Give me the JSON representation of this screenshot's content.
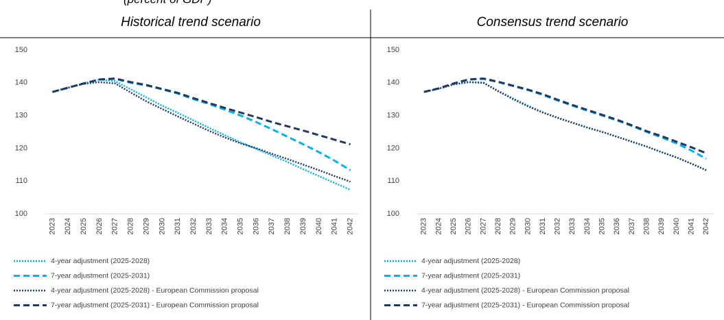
{
  "header": {
    "caption": "(percent of GDP)"
  },
  "chart_data": [
    {
      "type": "line",
      "title": "Historical trend scenario",
      "x": [
        2023,
        2024,
        2025,
        2026,
        2027,
        2028,
        2029,
        2030,
        2031,
        2032,
        2033,
        2034,
        2035,
        2036,
        2037,
        2038,
        2039,
        2040,
        2041,
        2042
      ],
      "ylim": [
        100,
        150
      ],
      "yticks": [
        100,
        110,
        120,
        130,
        140,
        150
      ],
      "legend": "bottom",
      "series": [
        {
          "name": "4-year adjustment (2025-2028)",
          "color": "#00b0f0",
          "dash": "dotted",
          "values": [
            137.2,
            138.5,
            139.8,
            141,
            140.5,
            138,
            135.5,
            133,
            130.8,
            128.5,
            126.2,
            124,
            121.8,
            119.8,
            117.8,
            115.8,
            113.6,
            111.5,
            109.4,
            107.3
          ]
        },
        {
          "name": "7-year adjustment (2025-2031)",
          "color": "#00b0f0",
          "dash": "dashed",
          "values": [
            137.2,
            138.5,
            139.8,
            141,
            141.2,
            140,
            139.2,
            138,
            136.7,
            135,
            133.5,
            131.8,
            130,
            128,
            125.8,
            123.5,
            121.2,
            118.8,
            116.2,
            113.3
          ]
        },
        {
          "name": "4-year adjustment (2025-2028) - European Commission proposal",
          "color": "#1f3864",
          "dash": "dotted",
          "values": [
            137.2,
            138.5,
            139.7,
            140.2,
            139.8,
            137,
            134.3,
            132,
            129.7,
            127.5,
            125.3,
            123.3,
            121.5,
            120,
            118.3,
            116.7,
            115,
            113.3,
            111.5,
            109.8
          ]
        },
        {
          "name": "7-year adjustment (2025-2031) - European Commission proposal",
          "color": "#1f3864",
          "dash": "dashed",
          "values": [
            137.2,
            138.5,
            139.8,
            141,
            141.3,
            140.2,
            139.3,
            138.1,
            136.9,
            135.3,
            133.8,
            132.3,
            130.9,
            129.5,
            128,
            126.7,
            125.4,
            124,
            122.6,
            121.2
          ]
        }
      ]
    },
    {
      "type": "line",
      "title": "Consensus trend scenario",
      "x": [
        2023,
        2024,
        2025,
        2026,
        2027,
        2028,
        2029,
        2030,
        2031,
        2032,
        2033,
        2034,
        2035,
        2036,
        2037,
        2038,
        2039,
        2040,
        2041,
        2042
      ],
      "ylim": [
        100,
        150
      ],
      "yticks": [
        100,
        110,
        120,
        130,
        140,
        150
      ],
      "legend": "bottom",
      "series": [
        {
          "name": "4-year adjustment (2025-2028)",
          "color": "#00b0f0",
          "dash": "dotted",
          "values": [
            137.2,
            138.2,
            139.5,
            140.2,
            140,
            137.5,
            135.2,
            133,
            131,
            129.3,
            127.8,
            126.3,
            125,
            123.5,
            122,
            120.5,
            118.8,
            117.2,
            115.3,
            113.3
          ]
        },
        {
          "name": "7-year adjustment (2025-2031)",
          "color": "#00b0f0",
          "dash": "dashed",
          "values": [
            137.2,
            138.3,
            139.8,
            141,
            141.2,
            140.2,
            139,
            137.8,
            136.3,
            134.6,
            133,
            131.5,
            130,
            128.5,
            126.8,
            125,
            123.3,
            121.5,
            119.3,
            116.8
          ]
        },
        {
          "name": "4-year adjustment (2025-2028) - European Commission proposal",
          "color": "#1f3864",
          "dash": "dotted",
          "values": [
            137.2,
            138.2,
            139.5,
            140.2,
            140,
            137.4,
            135,
            132.8,
            130.9,
            129.3,
            127.8,
            126.3,
            125,
            123.5,
            122,
            120.5,
            118.8,
            117.2,
            115.3,
            113.3
          ]
        },
        {
          "name": "7-year adjustment (2025-2031) - European Commission proposal",
          "color": "#1f3864",
          "dash": "dashed",
          "values": [
            137.2,
            138.3,
            139.8,
            141,
            141.3,
            140.3,
            139.1,
            137.9,
            136.5,
            134.8,
            133.2,
            131.7,
            130.2,
            128.7,
            127,
            125.2,
            123.7,
            122,
            120.3,
            118.5
          ]
        }
      ]
    }
  ]
}
